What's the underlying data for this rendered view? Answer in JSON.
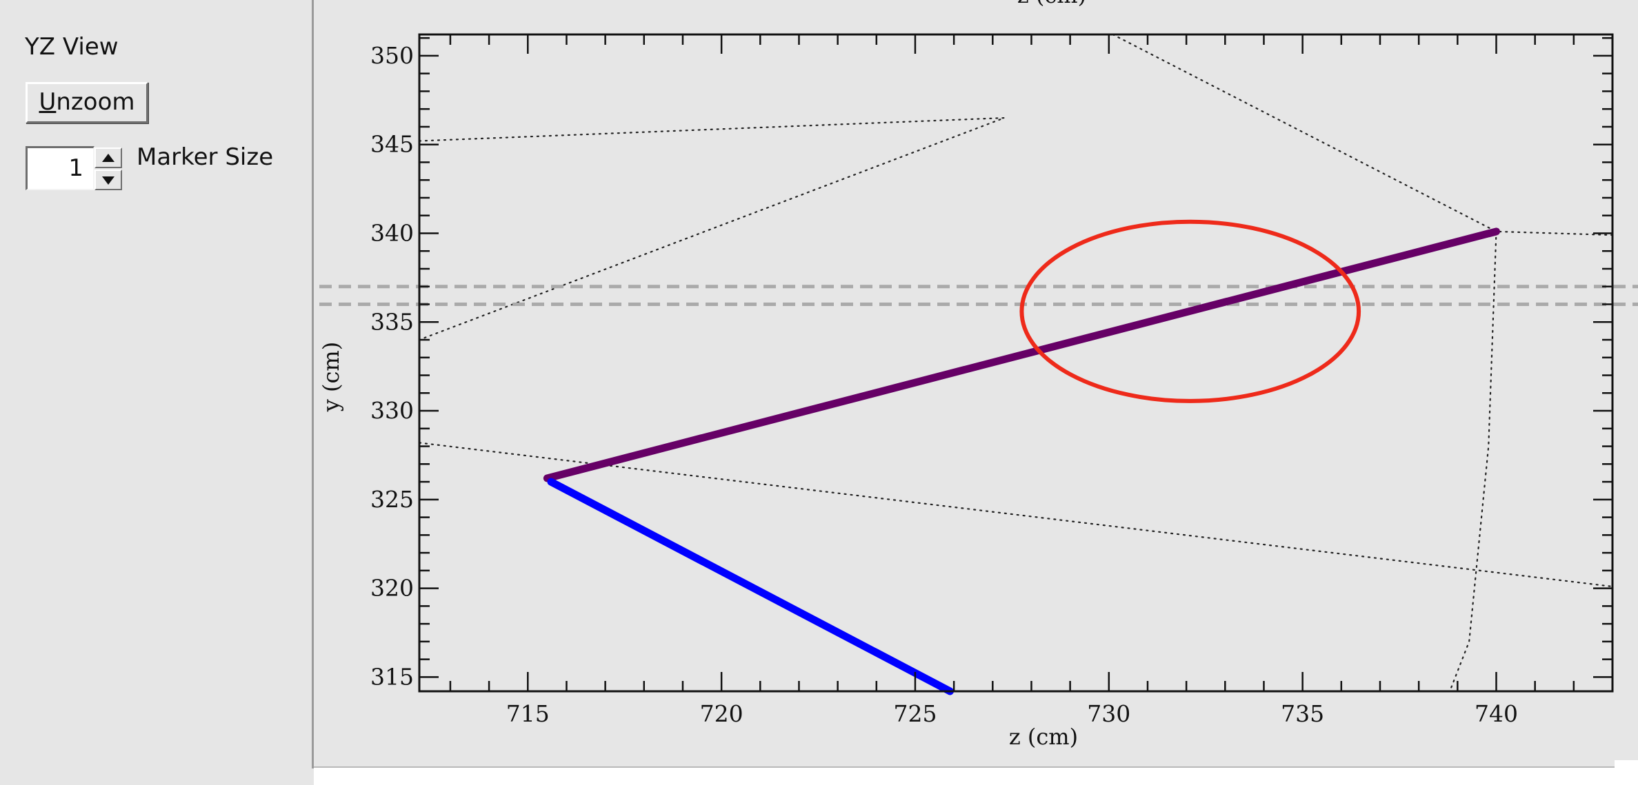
{
  "left_panel": {
    "view_title": "YZ View",
    "unzoom_prefix": "U",
    "unzoom_rest": "nzoom",
    "marker_size_value": "1",
    "marker_size_label": "Marker Size"
  },
  "top_axis_label": "z (cm)",
  "colors": {
    "background": "#e6e6e6",
    "track_purple": "#660066",
    "track_blue": "#0000ff",
    "annotation_ellipse": "#ee2a1a",
    "dashed_lines": "#aaaaaa",
    "dotted_lines": "#222222"
  },
  "chart_data": {
    "type": "line",
    "title": "",
    "xlabel": "z (cm)",
    "ylabel": "y (cm)",
    "xlim": [
      712.2,
      743.0
    ],
    "ylim": [
      314.2,
      351.2
    ],
    "x_ticks": [
      715,
      720,
      725,
      730,
      735,
      740
    ],
    "y_ticks": [
      315,
      320,
      325,
      330,
      335,
      340,
      345,
      350
    ],
    "series": [
      {
        "style": "thick",
        "color": "#660066",
        "x": [
          715.5,
          740.0
        ],
        "y": [
          326.2,
          340.1
        ]
      },
      {
        "style": "thick",
        "color": "#0000ff",
        "x": [
          715.6,
          725.9
        ],
        "y": [
          326.0,
          314.2
        ]
      },
      {
        "style": "dotted",
        "color": "#222222",
        "x": [
          712.2,
          727.3,
          712.2
        ],
        "y": [
          345.2,
          346.5,
          334.0
        ]
      },
      {
        "style": "dotted",
        "color": "#222222",
        "x": [
          730.1,
          740.0,
          743.0
        ],
        "y": [
          351.2,
          340.1,
          339.9
        ]
      },
      {
        "style": "dotted",
        "color": "#222222",
        "x": [
          740.0,
          739.8,
          739.3,
          738.8
        ],
        "y": [
          340.1,
          328.0,
          317.0,
          314.2
        ]
      },
      {
        "style": "dotted",
        "color": "#222222",
        "x": [
          712.2,
          743.0
        ],
        "y": [
          328.2,
          320.1
        ]
      }
    ],
    "dashed_horizontal_y": [
      337.0,
      336.0
    ],
    "annotation_ellipse": {
      "cx": 732.1,
      "cy": 335.6,
      "rx": 4.35,
      "ry": 5.05
    }
  }
}
